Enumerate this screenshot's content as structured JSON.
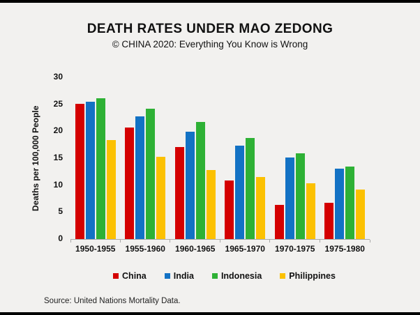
{
  "chart_data": {
    "type": "bar",
    "title": "DEATH RATES UNDER MAO ZEDONG",
    "subtitle": "© CHINA 2020: Everything You Know is Wrong",
    "categories": [
      "1950-1955",
      "1955-1960",
      "1960-1965",
      "1965-1970",
      "1970-1975",
      "1975-1980"
    ],
    "series": [
      {
        "name": "China",
        "color": "#d40000",
        "values": [
          25.1,
          20.7,
          17.1,
          10.9,
          6.3,
          6.7
        ]
      },
      {
        "name": "India",
        "color": "#1372c4",
        "values": [
          25.5,
          22.7,
          19.9,
          17.3,
          15.1,
          13.1
        ]
      },
      {
        "name": "Indonesia",
        "color": "#2eb135",
        "values": [
          26.1,
          24.2,
          21.7,
          18.7,
          15.9,
          13.4
        ]
      },
      {
        "name": "Philippines",
        "color": "#fcc101",
        "values": [
          18.4,
          15.3,
          12.8,
          11.5,
          10.4,
          9.2
        ]
      }
    ],
    "xlabel": "",
    "ylabel": "Deaths per 100,000 People",
    "ylim": [
      0,
      30
    ],
    "yticks": [
      0,
      5,
      10,
      15,
      20,
      25,
      30
    ],
    "grid": false,
    "legend_position": "bottom",
    "source": "Source: United Nations Mortality Data.",
    "background_color": "#f2f1ef",
    "axis_color": "#a8a8a8",
    "text_color": "#111111"
  }
}
